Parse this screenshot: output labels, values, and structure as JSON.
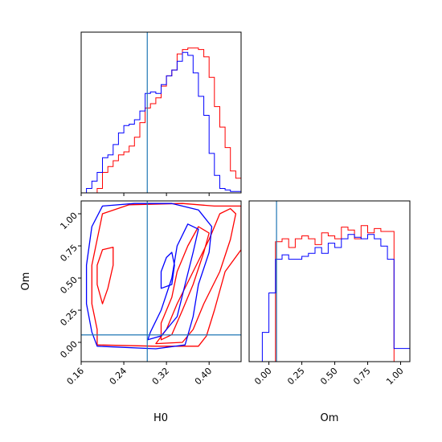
{
  "chart_data": [
    {
      "type": "histogram",
      "panel": "H0 marginal (top-left)",
      "xlim": [
        0.16,
        0.46
      ],
      "truth": 0.284,
      "series": [
        {
          "color": "#ff0000",
          "bin_edges": [
            0.16,
            0.17,
            0.18,
            0.19,
            0.2,
            0.21,
            0.22,
            0.23,
            0.24,
            0.25,
            0.26,
            0.27,
            0.28,
            0.29,
            0.3,
            0.31,
            0.32,
            0.33,
            0.34,
            0.35,
            0.36,
            0.37,
            0.38,
            0.39,
            0.4,
            0.41,
            0.42,
            0.43,
            0.44,
            0.45,
            0.46
          ],
          "heights": [
            0,
            0,
            0,
            0.03,
            0.14,
            0.18,
            0.22,
            0.26,
            0.28,
            0.32,
            0.38,
            0.48,
            0.58,
            0.61,
            0.65,
            0.73,
            0.8,
            0.84,
            0.95,
            0.98,
            0.99,
            0.99,
            0.98,
            0.93,
            0.79,
            0.59,
            0.45,
            0.31,
            0.15,
            0.1
          ]
        },
        {
          "color": "#0000ff",
          "bin_edges": [
            0.16,
            0.17,
            0.18,
            0.19,
            0.2,
            0.21,
            0.22,
            0.23,
            0.24,
            0.25,
            0.26,
            0.27,
            0.28,
            0.29,
            0.3,
            0.31,
            0.32,
            0.33,
            0.34,
            0.35,
            0.36,
            0.37,
            0.38,
            0.39,
            0.4,
            0.41,
            0.42,
            0.43,
            0.44,
            0.45,
            0.46
          ],
          "heights": [
            0,
            0.03,
            0.08,
            0.14,
            0.24,
            0.26,
            0.33,
            0.41,
            0.46,
            0.47,
            0.5,
            0.56,
            0.68,
            0.69,
            0.68,
            0.74,
            0.8,
            0.84,
            0.9,
            0.96,
            0.94,
            0.82,
            0.66,
            0.53,
            0.27,
            0.12,
            0.03,
            0.02,
            0.01,
            0.01
          ]
        }
      ],
      "xticks": [
        0.16,
        0.24,
        0.32,
        0.4
      ]
    },
    {
      "type": "contour",
      "panel": "H0 vs Om joint (bottom-left)",
      "xlabel": "H0",
      "ylabel": "Om",
      "xlim": [
        0.16,
        0.46
      ],
      "ylim": [
        -0.15,
        1.1
      ],
      "xticks": [
        "0.16",
        "0.24",
        "0.32",
        "0.40"
      ],
      "yticks": [
        "0.00",
        "0.25",
        "0.50",
        "0.75",
        "1.00"
      ],
      "truth": {
        "H0": 0.284,
        "Om": 0.058
      },
      "series": [
        {
          "color": "#ff0000",
          "contours": [
            [
              [
                0.19,
                -0.02
              ],
              [
                0.3,
                -0.03
              ],
              [
                0.38,
                -0.03
              ],
              [
                0.395,
                0.05
              ],
              [
                0.41,
                0.25
              ],
              [
                0.43,
                0.55
              ],
              [
                0.46,
                0.72
              ],
              [
                0.46,
                1.06
              ],
              [
                0.41,
                1.06
              ],
              [
                0.35,
                1.08
              ],
              [
                0.25,
                1.07
              ],
              [
                0.2,
                1.0
              ],
              [
                0.19,
                0.8
              ],
              [
                0.18,
                0.6
              ],
              [
                0.18,
                0.3
              ],
              [
                0.19,
                0.1
              ]
            ],
            [
              [
                0.3,
                -0.01
              ],
              [
                0.35,
                0.0
              ],
              [
                0.37,
                0.1
              ],
              [
                0.39,
                0.3
              ],
              [
                0.42,
                0.55
              ],
              [
                0.44,
                0.8
              ],
              [
                0.45,
                1.0
              ],
              [
                0.44,
                1.04
              ],
              [
                0.42,
                1.0
              ],
              [
                0.4,
                0.8
              ],
              [
                0.37,
                0.55
              ],
              [
                0.34,
                0.3
              ],
              [
                0.32,
                0.1
              ]
            ],
            [
              [
                0.31,
                0.02
              ],
              [
                0.33,
                0.06
              ],
              [
                0.35,
                0.25
              ],
              [
                0.37,
                0.45
              ],
              [
                0.39,
                0.7
              ],
              [
                0.4,
                0.85
              ],
              [
                0.38,
                0.9
              ],
              [
                0.36,
                0.75
              ],
              [
                0.34,
                0.55
              ],
              [
                0.33,
                0.35
              ],
              [
                0.31,
                0.15
              ]
            ],
            [
              [
                0.2,
                0.72
              ],
              [
                0.22,
                0.74
              ],
              [
                0.22,
                0.6
              ],
              [
                0.21,
                0.42
              ],
              [
                0.2,
                0.3
              ],
              [
                0.19,
                0.45
              ],
              [
                0.19,
                0.6
              ]
            ]
          ]
        },
        {
          "color": "#0000ff",
          "contours": [
            [
              [
                0.19,
                -0.03
              ],
              [
                0.3,
                -0.05
              ],
              [
                0.355,
                -0.02
              ],
              [
                0.37,
                0.2
              ],
              [
                0.38,
                0.45
              ],
              [
                0.4,
                0.7
              ],
              [
                0.405,
                0.9
              ],
              [
                0.38,
                1.03
              ],
              [
                0.33,
                1.08
              ],
              [
                0.26,
                1.08
              ],
              [
                0.2,
                1.06
              ],
              [
                0.18,
                0.9
              ],
              [
                0.17,
                0.6
              ],
              [
                0.17,
                0.3
              ],
              [
                0.18,
                0.08
              ]
            ],
            [
              [
                0.285,
                0.02
              ],
              [
                0.31,
                0.05
              ],
              [
                0.34,
                0.2
              ],
              [
                0.355,
                0.45
              ],
              [
                0.37,
                0.7
              ],
              [
                0.38,
                0.88
              ],
              [
                0.36,
                0.92
              ],
              [
                0.34,
                0.75
              ],
              [
                0.33,
                0.5
              ],
              [
                0.31,
                0.25
              ],
              [
                0.29,
                0.08
              ]
            ],
            [
              [
                0.31,
                0.42
              ],
              [
                0.33,
                0.45
              ],
              [
                0.335,
                0.6
              ],
              [
                0.33,
                0.7
              ],
              [
                0.32,
                0.66
              ],
              [
                0.31,
                0.55
              ]
            ]
          ]
        }
      ]
    },
    {
      "type": "histogram",
      "panel": "Om marginal (bottom-right)",
      "xlabel": "Om",
      "xlim": [
        -0.15,
        1.07
      ],
      "truth": 0.058,
      "xticks": [
        "0.00",
        "0.25",
        "0.50",
        "0.75",
        "1.00"
      ],
      "series": [
        {
          "color": "#ff0000",
          "bin_edges": [
            -0.15,
            -0.1,
            -0.05,
            0.0,
            0.05,
            0.1,
            0.15,
            0.2,
            0.25,
            0.3,
            0.35,
            0.4,
            0.45,
            0.5,
            0.55,
            0.6,
            0.65,
            0.7,
            0.75,
            0.8,
            0.85,
            0.9,
            0.95,
            1.0,
            1.07
          ],
          "heights": [
            0,
            0,
            0,
            0,
            0.82,
            0.84,
            0.78,
            0.84,
            0.86,
            0.84,
            0.8,
            0.88,
            0.86,
            0.84,
            0.92,
            0.9,
            0.84,
            0.93,
            0.88,
            0.91,
            0.89,
            0.89,
            0.0,
            0.0
          ]
        },
        {
          "color": "#0000ff",
          "bin_edges": [
            -0.15,
            -0.1,
            -0.05,
            0.0,
            0.05,
            0.1,
            0.15,
            0.2,
            0.25,
            0.3,
            0.35,
            0.4,
            0.45,
            0.5,
            0.55,
            0.6,
            0.65,
            0.7,
            0.75,
            0.8,
            0.85,
            0.9,
            0.95,
            1.0,
            1.07
          ],
          "heights": [
            0,
            0,
            0.2,
            0.47,
            0.7,
            0.73,
            0.7,
            0.7,
            0.72,
            0.74,
            0.78,
            0.74,
            0.81,
            0.78,
            0.84,
            0.87,
            0.85,
            0.84,
            0.87,
            0.84,
            0.79,
            0.7,
            0.09,
            0.09
          ]
        }
      ]
    }
  ]
}
